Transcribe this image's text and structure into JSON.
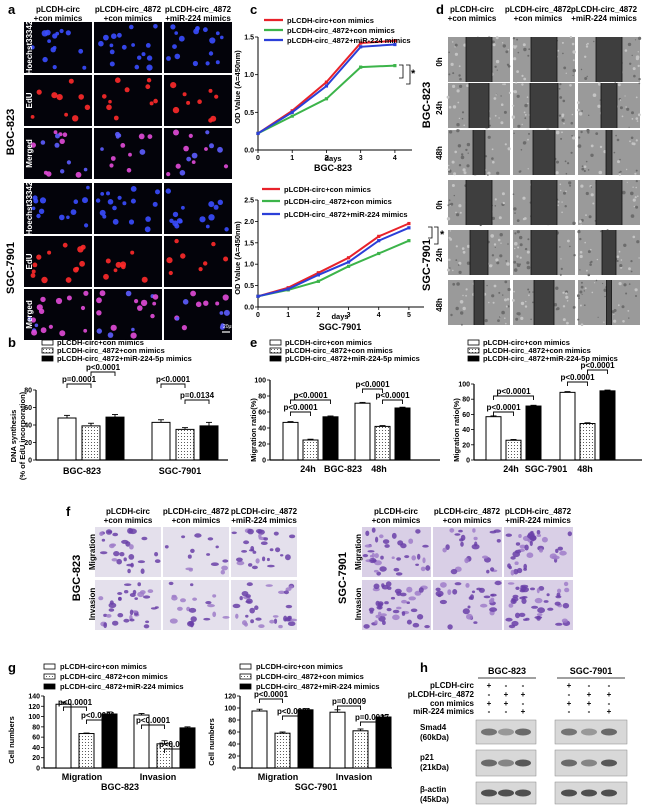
{
  "panel_a": {
    "letter": "a",
    "columns": [
      "pLCDH-circ",
      "+con mimics",
      "pLCDH-circ_4872",
      "+con mimics",
      "pLCDH-circ_4872",
      "+miR-224 mimics"
    ],
    "rows": [
      "Hoechst33342",
      "EdU",
      "Merged",
      "Hoechst33342",
      "EdU",
      "Merged"
    ],
    "cell_lines": [
      "BGC-823",
      "SGC-7901"
    ],
    "scale": "20μm"
  },
  "panel_c": {
    "letter": "c",
    "legend": [
      "pLCDH-circ+con mimics",
      "pLCDH-circ_4872+con mimics",
      "pLCDH-circ_4872+miR-224 mimics"
    ],
    "series_colors": [
      "#e8222a",
      "#3cb44a",
      "#2b3fd8"
    ],
    "ylabel": "OD Value (A=450nm)",
    "xlabel": "days",
    "top_title": "BGC-823",
    "bottom_title": "SGC-7901",
    "star": "*"
  },
  "panel_d": {
    "letter": "d",
    "columns": [
      "pLCDH-circ",
      "+con mimics",
      "pLCDH-circ_4872",
      "+con mimics",
      "pLCDH-circ_4872",
      "+miR-224 mimics"
    ],
    "rows": [
      "0h",
      "24h",
      "48h"
    ],
    "cell_lines": [
      "BGC-823",
      "SGC-7901"
    ]
  },
  "panel_b": {
    "letter": "b",
    "legend": [
      "pLCDH-circ+con mimics",
      "pLCDH-circ_4872+con mimics",
      "pLCDH-circ_4872+miR-224-5p mimics"
    ],
    "ylabel": "DNA synthesis",
    "ylabel2": "(% of EdU incorporation)",
    "pvals": [
      "p=0.0001",
      "p<0.0001",
      "p<0.0001",
      "p=0.0134"
    ]
  },
  "panel_e": {
    "letter": "e",
    "legend": [
      "pLCDH-circ+con mimics",
      "pLCDH-circ_4872+con mimics",
      "pLCDH-circ_4872+miR-224-5p mimics"
    ],
    "ylabel": "Migration ratio(%)",
    "pvals": [
      "p<0.0001",
      "p<0.0001",
      "p<0.0001",
      "p<0.0001"
    ],
    "left_x": [
      "24h",
      "BGC-823",
      "48h"
    ],
    "right_x": [
      "24h",
      "SGC-7901",
      "48h"
    ]
  },
  "panel_f": {
    "letter": "f",
    "columns": [
      "pLCDH-circ",
      "+con mimics",
      "pLCDH-circ_4872",
      "+con mimics",
      "pLCDH-circ_4872",
      "+miR-224 mimics"
    ],
    "rows": [
      "Migration",
      "Invasion"
    ],
    "cell_lines": [
      "BGC-823",
      "SGC-7901"
    ]
  },
  "panel_g": {
    "letter": "g",
    "legend": [
      "pLCDH-circ+con mimics",
      "pLCDH-circ_4872+con mimics",
      "pLCDH-circ_4872+miR-224 mimics"
    ],
    "ylabel": "Cell numbers",
    "left_pvals": [
      "p<0.0001",
      "p<0.0001",
      "p<0.0001",
      "p<0.0001"
    ],
    "right_pvals": [
      "p<0.0001",
      "p<0.0001",
      "p=0.0009",
      "p=0.0017"
    ],
    "left_x": [
      "Migration",
      "Invasion",
      "BGC-823"
    ],
    "right_x": [
      "Migration",
      "Invasion",
      "SGC-7901"
    ]
  },
  "panel_h": {
    "letter": "h",
    "cell_lines": [
      "BGC-823",
      "SGC-7901"
    ],
    "treat_labels": [
      "pLCDH-circ",
      "pLCDH-circ_4872",
      "con mimics",
      "miR-224 mimics"
    ],
    "treat_signs": [
      [
        "+",
        "-",
        "-"
      ],
      [
        "-",
        "+",
        "+"
      ],
      [
        "+",
        "+",
        "-"
      ],
      [
        "-",
        "-",
        "+"
      ]
    ],
    "bands": [
      "Smad4",
      "(60kDa)",
      "p21",
      "(21kDa)",
      "β-actin",
      "(45kDa)"
    ]
  },
  "chart_data": [
    {
      "type": "line",
      "id": "c-top",
      "x": [
        0,
        1,
        2,
        3,
        4
      ],
      "series": [
        {
          "name": "pLCDH-circ+con mimics",
          "values": [
            0.22,
            0.52,
            0.9,
            1.42,
            1.45
          ]
        },
        {
          "name": "pLCDH-circ_4872+con mimics",
          "values": [
            0.22,
            0.45,
            0.68,
            1.1,
            1.12
          ]
        },
        {
          "name": "pLCDH-circ_4872+miR-224 mimics",
          "values": [
            0.22,
            0.5,
            0.85,
            1.37,
            1.4
          ]
        }
      ],
      "xlim": [
        0,
        4.5
      ],
      "ylim": [
        0.0,
        1.5
      ],
      "xticks": [
        "0",
        "1",
        "2",
        "3",
        "4"
      ],
      "yticks": [
        "0.0",
        "0.5",
        "1.0",
        "1.5"
      ],
      "title": "BGC-823",
      "xlabel": "days",
      "ylabel": "OD Value (A=450nm)"
    },
    {
      "type": "line",
      "id": "c-bottom",
      "x": [
        0,
        1,
        2,
        3,
        4,
        5
      ],
      "series": [
        {
          "name": "pLCDH-circ+con mimics",
          "values": [
            0.25,
            0.45,
            0.8,
            1.15,
            1.65,
            1.95
          ]
        },
        {
          "name": "pLCDH-circ_4872+con mimics",
          "values": [
            0.25,
            0.4,
            0.6,
            0.95,
            1.25,
            1.55
          ]
        },
        {
          "name": "pLCDH-circ_4872+miR-224 mimics",
          "values": [
            0.25,
            0.42,
            0.75,
            1.05,
            1.55,
            1.85
          ]
        }
      ],
      "xlim": [
        0,
        5.5
      ],
      "ylim": [
        0.0,
        2.5
      ],
      "xticks": [
        "0",
        "1",
        "2",
        "3",
        "4",
        "5"
      ],
      "yticks": [
        "0.0",
        "0.5",
        "1.0",
        "1.5",
        "2.0",
        "2.5"
      ],
      "title": "SGC-7901",
      "xlabel": "days",
      "ylabel": "OD Value (A=450nm)"
    },
    {
      "type": "bar",
      "id": "b",
      "categories": [
        "BGC-823",
        "SGC-7901"
      ],
      "series": [
        {
          "name": "pLCDH-circ+con mimics",
          "values": [
            48,
            43
          ]
        },
        {
          "name": "pLCDH-circ_4872+con mimics",
          "values": [
            39,
            35
          ]
        },
        {
          "name": "pLCDH-circ_4872+miR-224-5p mimics",
          "values": [
            49,
            39
          ]
        }
      ],
      "errors": [
        [
          3,
          3
        ],
        [
          3,
          2
        ],
        [
          3,
          4
        ]
      ],
      "ylim": [
        0,
        80
      ],
      "yticks": [
        "0",
        "20",
        "40",
        "60",
        "80"
      ],
      "ylabel": "DNA synthesis (% of EdU incorporation)"
    },
    {
      "type": "bar",
      "id": "e-left",
      "categories": [
        "24h",
        "48h"
      ],
      "series": [
        {
          "name": "pLCDH-circ+con mimics",
          "values": [
            47,
            71
          ]
        },
        {
          "name": "pLCDH-circ_4872+con mimics",
          "values": [
            25,
            42
          ]
        },
        {
          "name": "pLCDH-circ_4872+miR-224-5p mimics",
          "values": [
            54,
            65
          ]
        }
      ],
      "errors": [
        [
          1,
          1
        ],
        [
          1,
          1
        ],
        [
          1,
          1
        ]
      ],
      "ylim": [
        0,
        100
      ],
      "yticks": [
        "0",
        "20",
        "40",
        "60",
        "80",
        "100"
      ],
      "ylabel": "Migration ratio(%)",
      "xlabel": "BGC-823"
    },
    {
      "type": "bar",
      "id": "e-right",
      "categories": [
        "24h",
        "48h"
      ],
      "series": [
        {
          "name": "pLCDH-circ+con mimics",
          "values": [
            57,
            89
          ]
        },
        {
          "name": "pLCDH-circ_4872+con mimics",
          "values": [
            26,
            48
          ]
        },
        {
          "name": "pLCDH-circ_4872+miR-224-5p mimics",
          "values": [
            71,
            91
          ]
        }
      ],
      "errors": [
        [
          1,
          1
        ],
        [
          1,
          1
        ],
        [
          1,
          1
        ]
      ],
      "ylim": [
        0,
        100
      ],
      "yticks": [
        "0",
        "20",
        "40",
        "60",
        "80",
        "100"
      ],
      "ylabel": "Migration ratio(%)",
      "xlabel": "SGC-7901"
    },
    {
      "type": "bar",
      "id": "g-left",
      "categories": [
        "Migration",
        "Invasion"
      ],
      "series": [
        {
          "name": "pLCDH-circ+con mimics",
          "values": [
            124,
            103
          ]
        },
        {
          "name": "pLCDH-circ_4872+con mimics",
          "values": [
            67,
            47
          ]
        },
        {
          "name": "pLCDH-circ_4872+miR-224 mimics",
          "values": [
            105,
            78
          ]
        }
      ],
      "errors": [
        [
          4,
          3
        ],
        [
          1,
          6
        ],
        [
          4,
          2
        ]
      ],
      "ylim": [
        0,
        140
      ],
      "yticks": [
        "0",
        "20",
        "40",
        "60",
        "80",
        "100",
        "120",
        "140"
      ],
      "ylabel": "Cell numbers",
      "xlabel": "BGC-823"
    },
    {
      "type": "bar",
      "id": "g-right",
      "categories": [
        "Migration",
        "Invasion"
      ],
      "series": [
        {
          "name": "pLCDH-circ+con mimics",
          "values": [
            95,
            93
          ]
        },
        {
          "name": "pLCDH-circ_4872+con mimics",
          "values": [
            58,
            62
          ]
        },
        {
          "name": "pLCDH-circ_4872+miR-224 mimics",
          "values": [
            97,
            85
          ]
        }
      ],
      "errors": [
        [
          3,
          4
        ],
        [
          2,
          3
        ],
        [
          2,
          3
        ]
      ],
      "ylim": [
        0,
        120
      ],
      "yticks": [
        "0",
        "20",
        "40",
        "60",
        "80",
        "100",
        "120"
      ],
      "ylabel": "Cell numbers",
      "xlabel": "SGC-7901"
    }
  ]
}
